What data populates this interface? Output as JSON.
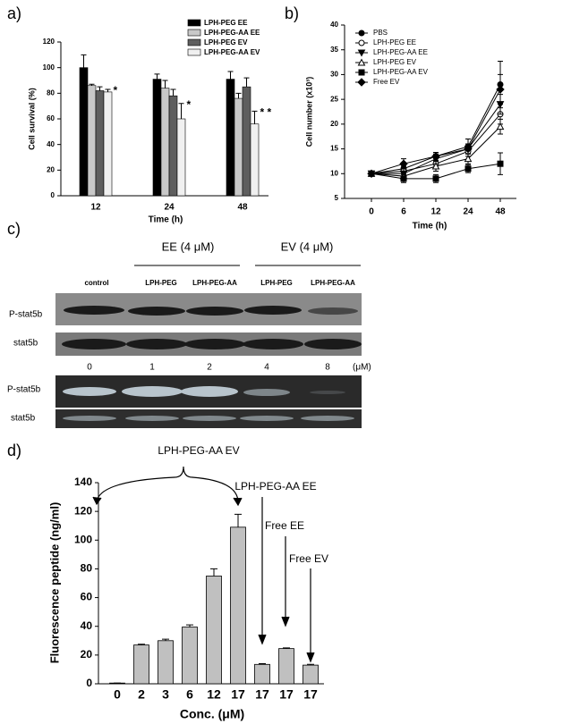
{
  "chart_data": [
    {
      "type": "bar",
      "panel_label": "a)",
      "y_label": "Cell survival (%)",
      "x_label": "Time (h)",
      "categories": [
        "12",
        "24",
        "48"
      ],
      "series": [
        {
          "name": "LPH-PEG EE",
          "color": "#000000",
          "values": [
            100,
            91,
            91
          ],
          "errors": [
            10,
            4,
            6
          ]
        },
        {
          "name": "LPH-PEG-AA EE",
          "color": "#c8c8c8",
          "values": [
            86,
            84,
            76
          ],
          "errors": [
            1,
            6,
            4
          ]
        },
        {
          "name": "LPH-PEG EV",
          "color": "#5e5e5e",
          "values": [
            82,
            78,
            85
          ],
          "errors": [
            3,
            5,
            7
          ]
        },
        {
          "name": "LPH-PEG-AA EV",
          "color": "#f0f0f0",
          "values": [
            81,
            60,
            56
          ],
          "errors": [
            2,
            12,
            10
          ]
        }
      ],
      "significance": [
        "*",
        "*",
        "* *"
      ],
      "ylim": [
        0,
        120
      ],
      "yticks": [
        0,
        20,
        40,
        60,
        80,
        100,
        120
      ],
      "legend": "upper right"
    },
    {
      "type": "line",
      "panel_label": "b)",
      "y_label": "Cell number (x10³)",
      "x_label": "Time (h)",
      "categories": [
        "0",
        "6",
        "12",
        "24",
        "48"
      ],
      "series": [
        {
          "name": "PBS",
          "color": "#000000",
          "marker": "circle",
          "values": [
            10,
            11,
            13.5,
            15.5,
            28
          ],
          "errors": [
            0.5,
            1,
            0.8,
            1.5,
            4.7
          ]
        },
        {
          "name": "LPH-PEG EE",
          "color": "#000000",
          "marker": "circle-open",
          "values": [
            10,
            10.5,
            12,
            14.5,
            22
          ],
          "errors": [
            0.5,
            1,
            1,
            1,
            2
          ]
        },
        {
          "name": "LPH-PEG-AA EE",
          "color": "#000000",
          "marker": "triangle-down",
          "values": [
            10,
            10,
            13,
            15,
            24
          ],
          "errors": [
            0.5,
            1,
            1,
            1,
            2
          ]
        },
        {
          "name": "LPH-PEG EV",
          "color": "#000000",
          "marker": "triangle-up-open",
          "values": [
            10,
            9.5,
            11.5,
            13,
            19.5
          ],
          "errors": [
            0.5,
            1,
            1,
            1,
            1.5
          ]
        },
        {
          "name": "LPH-PEG-AA EV",
          "color": "#000000",
          "marker": "square",
          "values": [
            10,
            9,
            9,
            11,
            12
          ],
          "errors": [
            0.5,
            0.8,
            0.8,
            0.8,
            2.2
          ]
        },
        {
          "name": "Free EV",
          "color": "#000000",
          "marker": "diamond",
          "values": [
            10,
            12,
            13.5,
            15,
            27
          ],
          "errors": [
            0.5,
            1,
            0.8,
            1,
            3
          ]
        }
      ],
      "ylim": [
        5,
        40
      ],
      "yticks": [
        5,
        10,
        15,
        20,
        25,
        30,
        35,
        40
      ],
      "legend": "upper left"
    },
    {
      "type": "bar",
      "panel_label": "d)",
      "y_label": "Fluorescence peptide (ng/ml)",
      "x_label": "Conc. (μM)",
      "categories": [
        "0",
        "2",
        "3",
        "6",
        "12",
        "17",
        "17",
        "17",
        "17"
      ],
      "color": "#c0c0c0",
      "values": [
        0.5,
        27,
        30,
        39.5,
        75,
        109,
        13.5,
        24.5,
        13
      ],
      "errors": [
        0,
        0.5,
        1,
        1.5,
        5,
        9,
        0.5,
        0.5,
        0.5
      ],
      "annotations": [
        "LPH-PEG-AA EV",
        "LPH-PEG-AA EE",
        "Free EE",
        "Free EV"
      ],
      "ylim": [
        0,
        140
      ],
      "yticks": [
        0,
        20,
        40,
        60,
        80,
        100,
        120,
        140
      ]
    }
  ],
  "blot": {
    "panel_label": "c)",
    "groups": [
      "EE (4 μM)",
      "EV (4 μM)"
    ],
    "lanes": [
      "control",
      "LPH-PEG",
      "LPH-PEG-AA",
      "LPH-PEG",
      "LPH-PEG-AA"
    ],
    "rows": [
      "P-stat5b",
      "stat5b"
    ],
    "dose_lanes": [
      "0",
      "1",
      "2",
      "4",
      "8"
    ],
    "dose_unit": "(μM)",
    "dose_rows": [
      "P-stat5b",
      "stat5b"
    ]
  }
}
